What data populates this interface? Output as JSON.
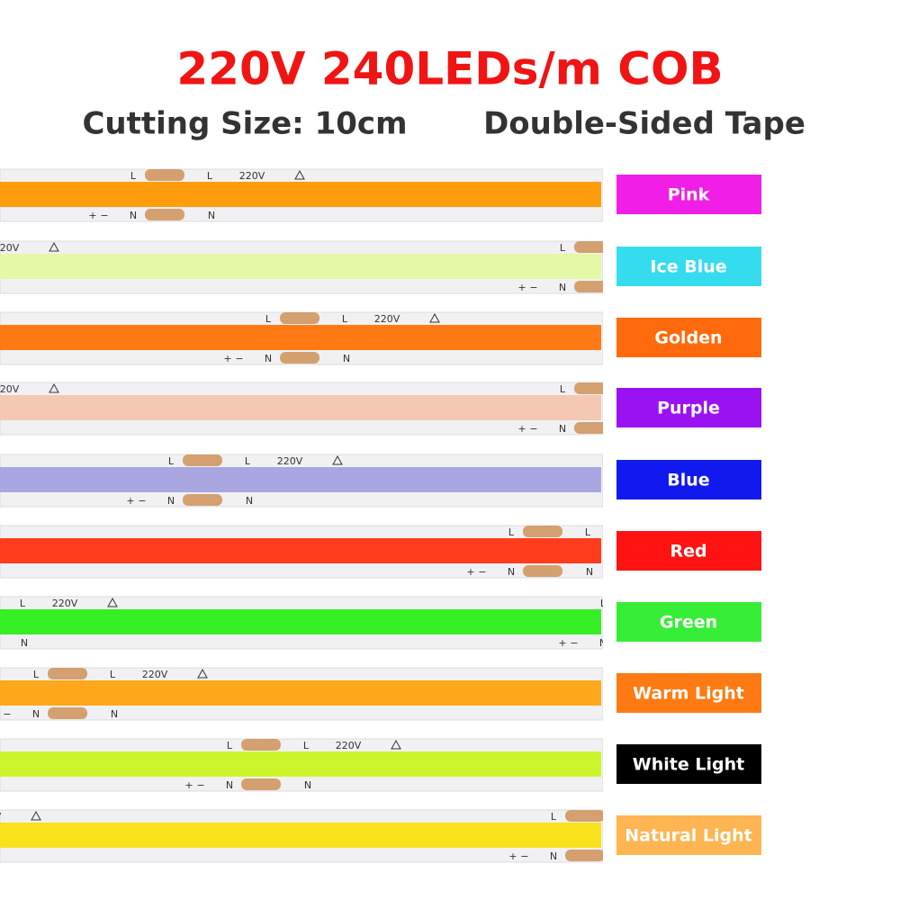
{
  "header": {
    "title": "220V 240LEDs/m COB",
    "cutting_size": "Cutting Size: 10cm",
    "tape": "Double-Sided Tape"
  },
  "strip_markings": {
    "line": "L",
    "voltage": "220V",
    "neutral": "N",
    "plus": "+",
    "minus": "−"
  },
  "items": [
    {
      "label": "Pink",
      "swatch": "#f01ee6",
      "tape": "#ff9c0e"
    },
    {
      "label": "Ice Blue",
      "swatch": "#35dcee",
      "tape": "#e4f8a6"
    },
    {
      "label": "Golden",
      "swatch": "#ff6a0c",
      "tape": "#ff7a14"
    },
    {
      "label": "Purple",
      "swatch": "#9b12f2",
      "tape": "#f4c8b2"
    },
    {
      "label": "Blue",
      "swatch": "#1219ee",
      "tape": "#aaa6e2"
    },
    {
      "label": "Red",
      "swatch": "#ff1212",
      "tape": "#ff3c1c"
    },
    {
      "label": "Green",
      "swatch": "#35ee35",
      "tape": "#36ee24"
    },
    {
      "label": "Warm Light",
      "swatch": "#ff7a12",
      "tape": "#ffa81c"
    },
    {
      "label": "White Light",
      "swatch": "#000000",
      "tape": "#cdf52c"
    },
    {
      "label": "Natural Light",
      "swatch": "#ffb552",
      "tape": "#f8e21c"
    }
  ]
}
